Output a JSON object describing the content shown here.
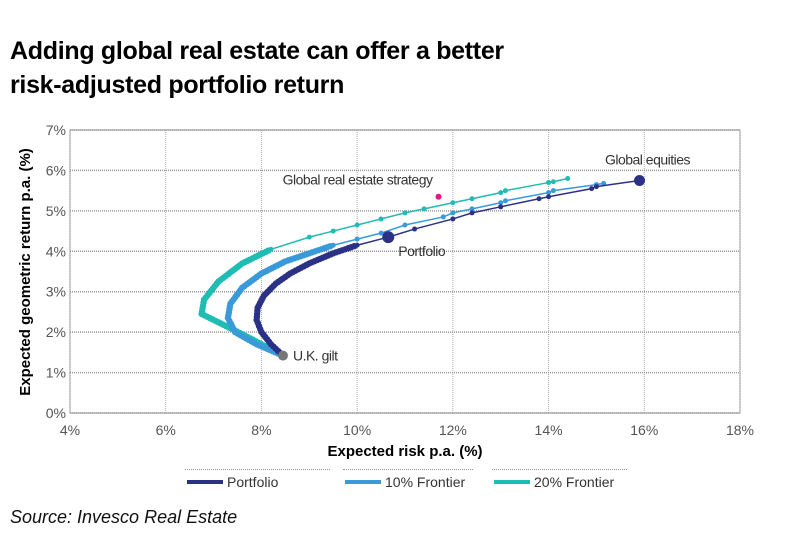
{
  "title_line1": "Adding global real estate can offer a better",
  "title_line2": "risk-adjusted portfolio return",
  "source": "Source: Invesco Real Estate",
  "colors": {
    "portfolio": "#2b3286",
    "frontier10": "#3a9ad9",
    "frontier20": "#1fbcb4",
    "strategy": "#e8157e",
    "gilt": "#777777"
  },
  "chart_data": {
    "type": "line",
    "title": "Adding global real estate can offer a better risk-adjusted portfolio return",
    "xlabel": "Expected risk p.a. (%)",
    "ylabel": "Expected geometric return p.a. (%)",
    "xlim": [
      4,
      18
    ],
    "ylim": [
      0,
      7
    ],
    "xticks": [
      "4%",
      "6%",
      "8%",
      "10%",
      "12%",
      "14%",
      "16%",
      "18%"
    ],
    "yticks": [
      "0%",
      "1%",
      "2%",
      "3%",
      "4%",
      "5%",
      "6%",
      "7%"
    ],
    "grid": true,
    "legend_position": "bottom",
    "series": [
      {
        "name": "Portfolio",
        "x": [
          8.45,
          8.2,
          8.0,
          7.9,
          7.92,
          8.05,
          8.3,
          8.6,
          9.0,
          9.5,
          10.0,
          10.65,
          11.2,
          12.0,
          12.4,
          13.0,
          13.8,
          14.0,
          14.9,
          15.0,
          15.9
        ],
        "y": [
          1.42,
          1.7,
          2.0,
          2.3,
          2.6,
          2.9,
          3.2,
          3.45,
          3.7,
          3.95,
          4.15,
          4.35,
          4.55,
          4.8,
          4.95,
          5.1,
          5.3,
          5.35,
          5.55,
          5.6,
          5.75
        ]
      },
      {
        "name": "10% Frontier",
        "x": [
          8.45,
          7.9,
          7.45,
          7.3,
          7.35,
          7.6,
          8.0,
          8.5,
          9.0,
          9.5,
          10.0,
          10.5,
          11.0,
          11.8,
          12.0,
          12.4,
          13.0,
          13.1,
          14.0,
          14.1,
          15.0,
          15.15
        ],
        "y": [
          1.42,
          1.7,
          2.0,
          2.35,
          2.7,
          3.1,
          3.45,
          3.75,
          3.95,
          4.15,
          4.3,
          4.45,
          4.65,
          4.85,
          4.95,
          5.05,
          5.2,
          5.25,
          5.45,
          5.5,
          5.65,
          5.68
        ]
      },
      {
        "name": "20% Frontier",
        "x": [
          8.45,
          7.6,
          6.75,
          6.8,
          7.1,
          7.6,
          8.2,
          9.0,
          9.5,
          10.0,
          10.5,
          11.0,
          11.4,
          12.0,
          12.4,
          13.0,
          13.1,
          14.0,
          14.1,
          14.4
        ],
        "y": [
          1.42,
          1.95,
          2.45,
          2.8,
          3.25,
          3.7,
          4.05,
          4.35,
          4.5,
          4.65,
          4.8,
          4.95,
          5.05,
          5.2,
          5.3,
          5.45,
          5.5,
          5.7,
          5.72,
          5.8
        ]
      }
    ],
    "annotations": [
      {
        "label": "Global equities",
        "x": 15.9,
        "y": 5.75
      },
      {
        "label": "Global real estate strategy",
        "x": 11.7,
        "y": 5.35
      },
      {
        "label": "Portfolio",
        "x": 10.65,
        "y": 4.35
      },
      {
        "label": "U.K. gilt",
        "x": 8.45,
        "y": 1.42
      }
    ]
  }
}
